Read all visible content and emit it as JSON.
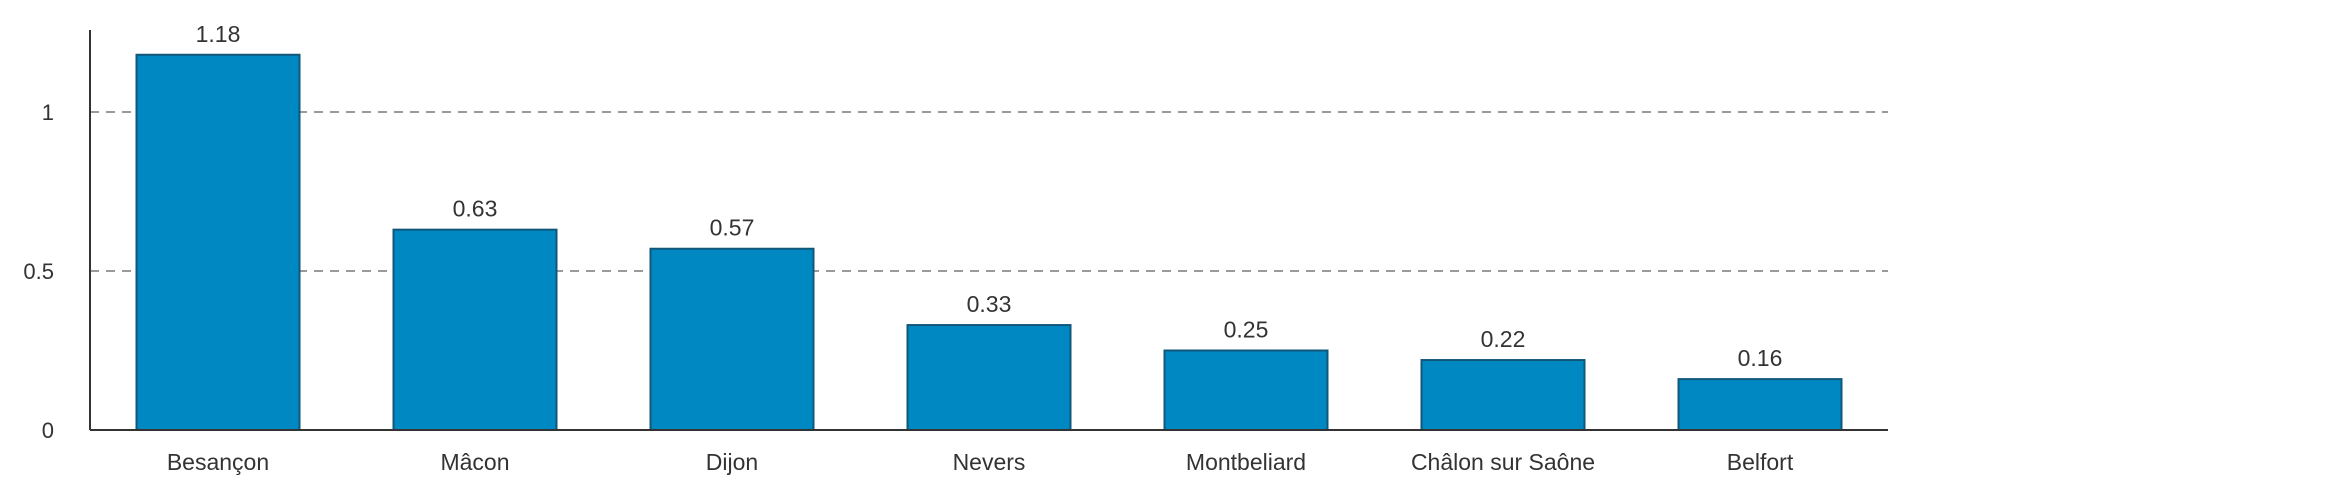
{
  "chart_data": {
    "type": "bar",
    "categories": [
      "Besançon",
      "Mâcon",
      "Dijon",
      "Nevers",
      "Montbeliard",
      "Châlon sur Saône",
      "Belfort"
    ],
    "values": [
      1.18,
      0.63,
      0.57,
      0.33,
      0.25,
      0.22,
      0.16
    ],
    "data_labels": [
      "1.18",
      "0.63",
      "0.57",
      "0.33",
      "0.25",
      "0.22",
      "0.16"
    ],
    "y_ticks": [
      0,
      0.5,
      1
    ],
    "y_tick_labels": [
      "0",
      "0.5",
      "1"
    ],
    "ylim": [
      0,
      1.25
    ],
    "grid": true,
    "gridlines_at": [
      0.5,
      1
    ],
    "bar_color": "#0088c2",
    "bar_edge_color": "#11577a"
  }
}
